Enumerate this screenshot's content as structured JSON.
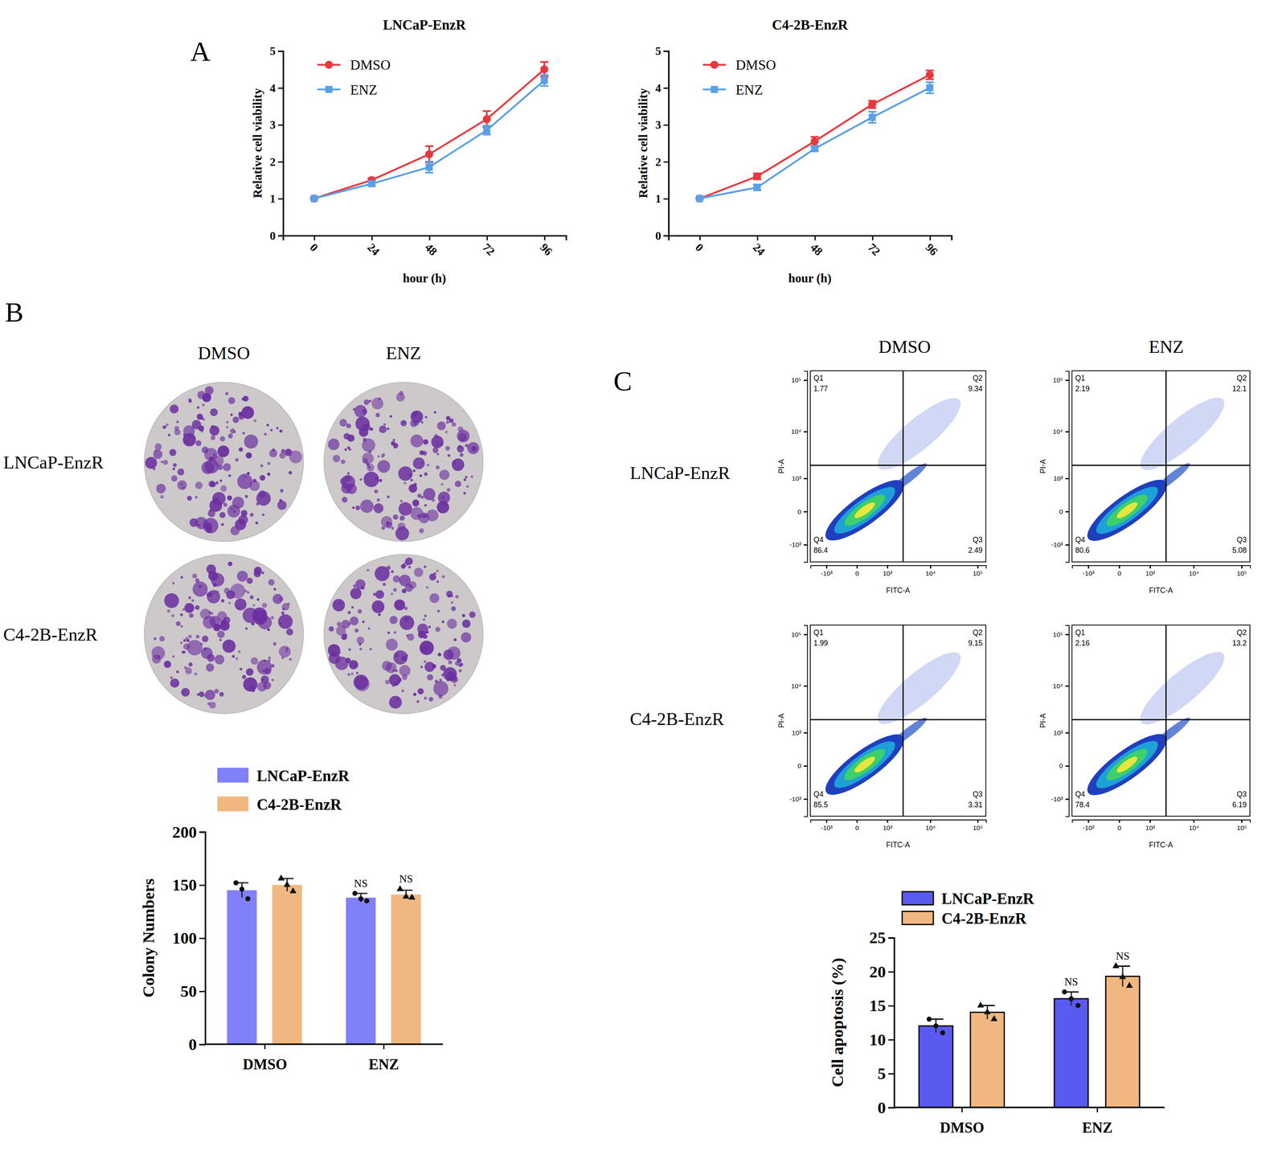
{
  "panel_labels": [
    "A",
    "B",
    "C"
  ],
  "colony_plates": {
    "columns": [
      "DMSO",
      "ENZ"
    ],
    "rows": [
      "LNCaP-EnzR",
      "C4-2B-EnzR"
    ]
  },
  "flow_grid": {
    "columns": [
      "DMSO",
      "ENZ"
    ],
    "rows": [
      "LNCaP-EnzR",
      "C4-2B-EnzR"
    ]
  },
  "chart_data": [
    {
      "type": "line",
      "title": "LNCaP-EnzR",
      "xlabel": "hour (h)",
      "ylabel": "Relative cell viability",
      "x": [
        0,
        24,
        48,
        72,
        96
      ],
      "xlim": [
        -13,
        105
      ],
      "xticks": [
        0,
        24,
        48,
        72,
        96
      ],
      "ylim": [
        0,
        5
      ],
      "yticks": [
        0,
        1,
        2,
        3,
        4,
        5
      ],
      "legend": "top-left",
      "series": [
        {
          "name": "DMSO",
          "color": "#e8383d",
          "marker": "circle",
          "values": [
            1,
            1.5,
            2.2,
            3.15,
            4.5
          ],
          "errors": [
            0,
            0.05,
            0.22,
            0.22,
            0.2
          ]
        },
        {
          "name": "ENZ",
          "color": "#5aa0e6",
          "marker": "square",
          "values": [
            1,
            1.4,
            1.85,
            2.85,
            4.2
          ],
          "errors": [
            0,
            0.05,
            0.15,
            0.12,
            0.15
          ]
        }
      ]
    },
    {
      "type": "line",
      "title": "C4-2B-EnzR",
      "xlabel": "hour (h)",
      "ylabel": "Relative cell viability",
      "x": [
        0,
        24,
        48,
        72,
        96
      ],
      "xlim": [
        -13,
        105
      ],
      "xticks": [
        0,
        24,
        48,
        72,
        96
      ],
      "ylim": [
        0,
        5
      ],
      "yticks": [
        0,
        1,
        2,
        3,
        4,
        5
      ],
      "legend": "top-left",
      "series": [
        {
          "name": "DMSO",
          "color": "#e8383d",
          "marker": "circle",
          "values": [
            1,
            1.6,
            2.55,
            3.55,
            4.35
          ],
          "errors": [
            0,
            0.08,
            0.12,
            0.1,
            0.12
          ]
        },
        {
          "name": "ENZ",
          "color": "#5aa0e6",
          "marker": "square",
          "values": [
            1,
            1.3,
            2.35,
            3.2,
            4.0
          ],
          "errors": [
            0,
            0.08,
            0.05,
            0.15,
            0.15
          ]
        }
      ]
    },
    {
      "type": "bar",
      "ylabel": "Colony Numbers",
      "categories": [
        "DMSO",
        "ENZ"
      ],
      "ylim": [
        0,
        200
      ],
      "yticks": [
        0,
        50,
        100,
        150,
        200
      ],
      "legend": "top",
      "series": [
        {
          "name": "LNCaP-EnzR",
          "color": "#8080f8",
          "marker": "circle",
          "values": [
            145,
            138
          ],
          "errors": [
            7,
            4
          ],
          "points": [
            [
              152,
              146,
              137
            ],
            [
              142,
              137,
              135
            ]
          ],
          "significance": [
            null,
            "NS"
          ]
        },
        {
          "name": "C4-2B-EnzR",
          "color": "#f0b880",
          "marker": "triangle",
          "values": [
            150,
            141
          ],
          "errors": [
            6,
            4
          ],
          "points": [
            [
              156,
              150,
              144
            ],
            [
              146,
              139,
              138
            ]
          ],
          "significance": [
            null,
            "NS"
          ]
        }
      ]
    },
    {
      "type": "flow_cytometry",
      "xlabel": "FITC-A",
      "ylabel": "PI-A",
      "xlim": [
        -2500,
        150000
      ],
      "xticks": [
        {
          "value": -1000,
          "label": "-10³"
        },
        0,
        {
          "value": 1000,
          "label": "10³"
        },
        {
          "value": 10000,
          "label": "10⁴"
        },
        {
          "value": 100000,
          "label": "10⁵"
        }
      ],
      "ylim": [
        -2500,
        150000
      ],
      "yticks": [
        {
          "value": -1000,
          "label": "-10³"
        },
        0,
        {
          "value": 1000,
          "label": "10³"
        },
        {
          "value": 10000,
          "label": "10⁴"
        },
        {
          "value": 100000,
          "label": "10⁵"
        }
      ],
      "gate_x": 2500,
      "gate_y": 2000,
      "log": true,
      "categories": [
        "Q1",
        "Q2",
        "Q3",
        "Q4"
      ],
      "values": [
        1.77,
        9.34,
        2.49,
        86.4
      ]
    },
    {
      "type": "flow_cytometry",
      "xlabel": "FITC-A",
      "ylabel": "PI-A",
      "xlim": [
        -2500,
        150000
      ],
      "xticks": [
        {
          "value": -1000,
          "label": "-10³"
        },
        0,
        {
          "value": 1000,
          "label": "10³"
        },
        {
          "value": 10000,
          "label": "10⁴"
        },
        {
          "value": 100000,
          "label": "10⁵"
        }
      ],
      "ylim": [
        -2500,
        150000
      ],
      "yticks": [
        {
          "value": -1000,
          "label": "-10³"
        },
        0,
        {
          "value": 1000,
          "label": "10³"
        },
        {
          "value": 10000,
          "label": "10⁴"
        },
        {
          "value": 100000,
          "label": "10⁵"
        }
      ],
      "gate_x": 2500,
      "gate_y": 2000,
      "log": true,
      "categories": [
        "Q1",
        "Q2",
        "Q3",
        "Q4"
      ],
      "values": [
        2.19,
        12.1,
        5.08,
        80.6
      ]
    },
    {
      "type": "flow_cytometry",
      "xlabel": "FITC-A",
      "ylabel": "PI-A",
      "xlim": [
        -2500,
        150000
      ],
      "xticks": [
        {
          "value": -1000,
          "label": "-10³"
        },
        0,
        {
          "value": 1000,
          "label": "10³"
        },
        {
          "value": 10000,
          "label": "10⁴"
        },
        {
          "value": 100000,
          "label": "10⁵"
        }
      ],
      "ylim": [
        -2500,
        150000
      ],
      "yticks": [
        {
          "value": -1000,
          "label": "-10³"
        },
        0,
        {
          "value": 1000,
          "label": "10³"
        },
        {
          "value": 10000,
          "label": "10⁴"
        },
        {
          "value": 100000,
          "label": "10⁵"
        }
      ],
      "gate_x": 2500,
      "gate_y": 2000,
      "log": true,
      "categories": [
        "Q1",
        "Q2",
        "Q3",
        "Q4"
      ],
      "values": [
        1.99,
        9.15,
        3.31,
        85.5
      ]
    },
    {
      "type": "flow_cytometry",
      "xlabel": "FITC-A",
      "ylabel": "PI-A",
      "xlim": [
        -2500,
        150000
      ],
      "xticks": [
        {
          "value": -1000,
          "label": "-10³"
        },
        0,
        {
          "value": 1000,
          "label": "10³"
        },
        {
          "value": 10000,
          "label": "10⁴"
        },
        {
          "value": 100000,
          "label": "10⁵"
        }
      ],
      "ylim": [
        -2500,
        150000
      ],
      "yticks": [
        {
          "value": -1000,
          "label": "-10³"
        },
        0,
        {
          "value": 1000,
          "label": "10³"
        },
        {
          "value": 10000,
          "label": "10⁴"
        },
        {
          "value": 100000,
          "label": "10⁵"
        }
      ],
      "gate_x": 2500,
      "gate_y": 2000,
      "log": true,
      "categories": [
        "Q1",
        "Q2",
        "Q3",
        "Q4"
      ],
      "values": [
        2.16,
        13.2,
        6.19,
        78.4
      ]
    },
    {
      "type": "bar",
      "ylabel": "Cell apoptosis (%)",
      "categories": [
        "DMSO",
        "ENZ"
      ],
      "ylim": [
        0,
        25
      ],
      "yticks": [
        0,
        5,
        10,
        15,
        20,
        25
      ],
      "legend": "top",
      "series": [
        {
          "name": "LNCaP-EnzR",
          "color": "#5a5af0",
          "marker": "circle",
          "values": [
            12,
            16
          ],
          "errors": [
            1,
            1
          ],
          "points": [
            [
              13,
              12,
              11
            ],
            [
              17,
              16,
              15
            ]
          ],
          "significance": [
            null,
            "NS"
          ]
        },
        {
          "name": "C4-2B-EnzR",
          "color": "#f0b880",
          "marker": "triangle",
          "values": [
            14,
            19.3
          ],
          "errors": [
            1,
            1.5
          ],
          "points": [
            [
              15,
              14,
              13
            ],
            [
              20.8,
              19.2,
              17.9
            ]
          ],
          "significance": [
            null,
            "NS"
          ]
        }
      ]
    }
  ]
}
